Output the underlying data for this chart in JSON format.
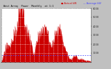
{
  "title_left": "West Array  Power  Monthly  at 1:1",
  "legend_actual": "Actual kW",
  "legend_avg": "Average kW",
  "background_color": "#c0c0c0",
  "plot_bg_color": "#ffffff",
  "bar_color": "#cc0000",
  "avg_line_color": "#4444ff",
  "grid_color": "#aaaaaa",
  "num_points": 200,
  "y_max": 6000,
  "y_ticks": [
    1000,
    2000,
    3000,
    4000,
    5000,
    6000
  ],
  "avg_value": 800,
  "seed": 17
}
